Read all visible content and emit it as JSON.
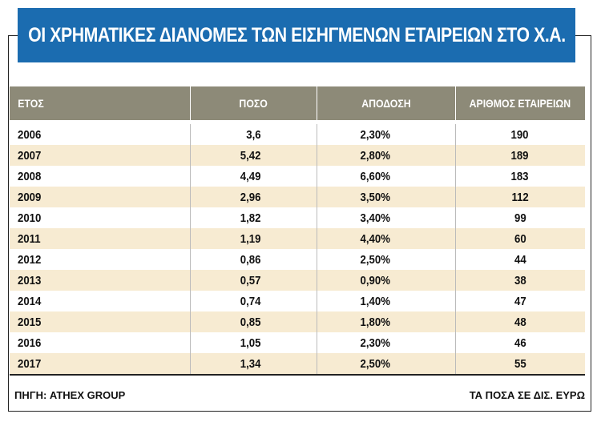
{
  "header": {
    "title": "ΟΙ ΧΡΗΜΑΤΙΚΕΣ ΔΙΑΝΟΜΕΣ ΤΩΝ ΕΙΣΗΓΜΕΝΩΝ ΕΤΑΙΡΕΙΩΝ ΣΤΟ Χ.Α."
  },
  "table": {
    "columns": [
      "ΕΤΟΣ",
      "ΠΟΣΟ",
      "ΑΠΟΔΟΣΗ",
      "ΑΡΙΘΜΟΣ ΕΤΑΙΡΕΙΩΝ"
    ],
    "rows": [
      [
        "2006",
        "3,6",
        "2,30%",
        "190"
      ],
      [
        "2007",
        "5,42",
        "2,80%",
        "189"
      ],
      [
        "2008",
        "4,49",
        "6,60%",
        "183"
      ],
      [
        "2009",
        "2,96",
        "3,50%",
        "112"
      ],
      [
        "2010",
        "1,82",
        "3,40%",
        "99"
      ],
      [
        "2011",
        "1,19",
        "4,40%",
        "60"
      ],
      [
        "2012",
        "0,86",
        "2,50%",
        "44"
      ],
      [
        "2013",
        "0,57",
        "0,90%",
        "38"
      ],
      [
        "2014",
        "0,74",
        "1,40%",
        "47"
      ],
      [
        "2015",
        "0,85",
        "1,80%",
        "48"
      ],
      [
        "2016",
        "1,05",
        "2,30%",
        "46"
      ],
      [
        "2017",
        "1,34",
        "2,50%",
        "55"
      ]
    ]
  },
  "footer": {
    "source": "ΠΗΓΗ: ATHEX GROUP",
    "note": "ΤΑ ΠΟΣΑ ΣΕ ΔΙΣ. ΕΥΡΩ"
  }
}
